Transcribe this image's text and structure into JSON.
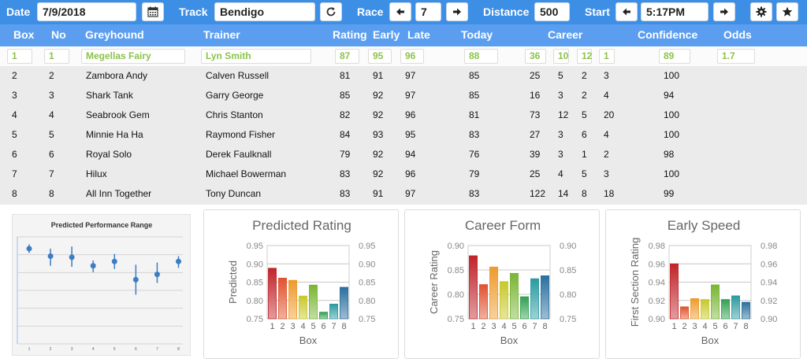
{
  "toolbar": {
    "date_label": "Date",
    "date_value": "7/9/2018",
    "track_label": "Track",
    "track_value": "Bendigo",
    "race_label": "Race",
    "race_value": "7",
    "distance_label": "Distance",
    "distance_value": "500",
    "start_label": "Start",
    "start_value": "5:17PM"
  },
  "table": {
    "headers": [
      "Box",
      "No",
      "Greyhound",
      "Trainer",
      "Rating",
      "Early",
      "Late",
      "Today",
      "Career",
      "Confidence",
      "Odds"
    ],
    "rows": [
      {
        "box": "1",
        "no": "1",
        "greyhound": "Megellas Fairy",
        "trainer": "Lyn Smith",
        "rating": "87",
        "early": "95",
        "late": "96",
        "today": "88",
        "c1": "36",
        "c2": "10",
        "c3": "12",
        "c4": "1",
        "confidence": "89",
        "odds": "1.7"
      },
      {
        "box": "2",
        "no": "2",
        "greyhound": "Zambora Andy",
        "trainer": "Calven Russell",
        "rating": "81",
        "early": "91",
        "late": "97",
        "today": "85",
        "c1": "25",
        "c2": "5",
        "c3": "2",
        "c4": "3",
        "confidence": "100",
        "odds": ""
      },
      {
        "box": "3",
        "no": "3",
        "greyhound": "Shark Tank",
        "trainer": "Garry George",
        "rating": "85",
        "early": "92",
        "late": "97",
        "today": "85",
        "c1": "16",
        "c2": "3",
        "c3": "2",
        "c4": "4",
        "confidence": "94",
        "odds": ""
      },
      {
        "box": "4",
        "no": "4",
        "greyhound": "Seabrook Gem",
        "trainer": "Chris Stanton",
        "rating": "82",
        "early": "92",
        "late": "96",
        "today": "81",
        "c1": "73",
        "c2": "12",
        "c3": "5",
        "c4": "20",
        "confidence": "100",
        "odds": ""
      },
      {
        "box": "5",
        "no": "5",
        "greyhound": "Minnie Ha Ha",
        "trainer": "Raymond Fisher",
        "rating": "84",
        "early": "93",
        "late": "95",
        "today": "83",
        "c1": "27",
        "c2": "3",
        "c3": "6",
        "c4": "4",
        "confidence": "100",
        "odds": ""
      },
      {
        "box": "6",
        "no": "6",
        "greyhound": "Royal Solo",
        "trainer": "Derek Faulknall",
        "rating": "79",
        "early": "92",
        "late": "94",
        "today": "76",
        "c1": "39",
        "c2": "3",
        "c3": "1",
        "c4": "2",
        "confidence": "98",
        "odds": ""
      },
      {
        "box": "7",
        "no": "7",
        "greyhound": "Hilux",
        "trainer": "Michael Bowerman",
        "rating": "83",
        "early": "92",
        "late": "96",
        "today": "79",
        "c1": "25",
        "c2": "4",
        "c3": "5",
        "c4": "3",
        "confidence": "100",
        "odds": ""
      },
      {
        "box": "8",
        "no": "8",
        "greyhound": "All Inn Together",
        "trainer": "Tony Duncan",
        "rating": "83",
        "early": "91",
        "late": "97",
        "today": "83",
        "c1": "122",
        "c2": "14",
        "c3": "8",
        "c4": "18",
        "confidence": "99",
        "odds": ""
      }
    ]
  },
  "colors": {
    "toolbar": "#3d8fe6",
    "header": "#5b9ef0",
    "selected_text": "#8bc34a",
    "bar_palette": [
      "#c0242a",
      "#e0522e",
      "#ee9a2c",
      "#c8c82a",
      "#7ab534",
      "#30a050",
      "#2a9aa0",
      "#2a6f9e"
    ]
  },
  "chart_data": [
    {
      "type": "scatter",
      "title": "Predicted Performance Range",
      "x": [
        "1",
        "2",
        "3",
        "4",
        "5",
        "6",
        "7",
        "8"
      ],
      "center": [
        0.89,
        0.82,
        0.81,
        0.73,
        0.77,
        0.6,
        0.65,
        0.77
      ],
      "low": [
        0.85,
        0.73,
        0.72,
        0.67,
        0.7,
        0.46,
        0.57,
        0.71
      ],
      "high": [
        0.93,
        0.89,
        0.91,
        0.78,
        0.84,
        0.74,
        0.76,
        0.82
      ],
      "ylim": [
        0,
        1
      ],
      "grid": true
    },
    {
      "type": "bar",
      "title": "Predicted Rating",
      "categories": [
        "1",
        "2",
        "3",
        "4",
        "5",
        "6",
        "7",
        "8"
      ],
      "values": [
        0.888,
        0.861,
        0.855,
        0.812,
        0.842,
        0.768,
        0.79,
        0.836
      ],
      "ylim": [
        0.75,
        0.95
      ],
      "yticks": [
        "0.75",
        "0.80",
        "0.85",
        "0.90",
        "0.95"
      ],
      "xlabel": "Box",
      "ylabel": "Predicted",
      "right_axis": true
    },
    {
      "type": "bar",
      "title": "Career Form",
      "categories": [
        "1",
        "2",
        "3",
        "4",
        "5",
        "6",
        "7",
        "8"
      ],
      "values": [
        0.879,
        0.82,
        0.856,
        0.826,
        0.843,
        0.795,
        0.832,
        0.838
      ],
      "ylim": [
        0.75,
        0.9
      ],
      "yticks": [
        "0.75",
        "0.80",
        "0.85",
        "0.90"
      ],
      "xlabel": "Box",
      "ylabel": "Career Rating",
      "right_axis": true
    },
    {
      "type": "bar",
      "title": "Early Speed",
      "categories": [
        "1",
        "2",
        "3",
        "4",
        "5",
        "6",
        "7",
        "8"
      ],
      "values": [
        0.96,
        0.913,
        0.922,
        0.921,
        0.937,
        0.921,
        0.925,
        0.918
      ],
      "ylim": [
        0.9,
        0.98
      ],
      "yticks": [
        "0.90",
        "0.92",
        "0.94",
        "0.96",
        "0.98"
      ],
      "xlabel": "Box",
      "ylabel": "First Section Rating",
      "right_axis": true
    }
  ]
}
